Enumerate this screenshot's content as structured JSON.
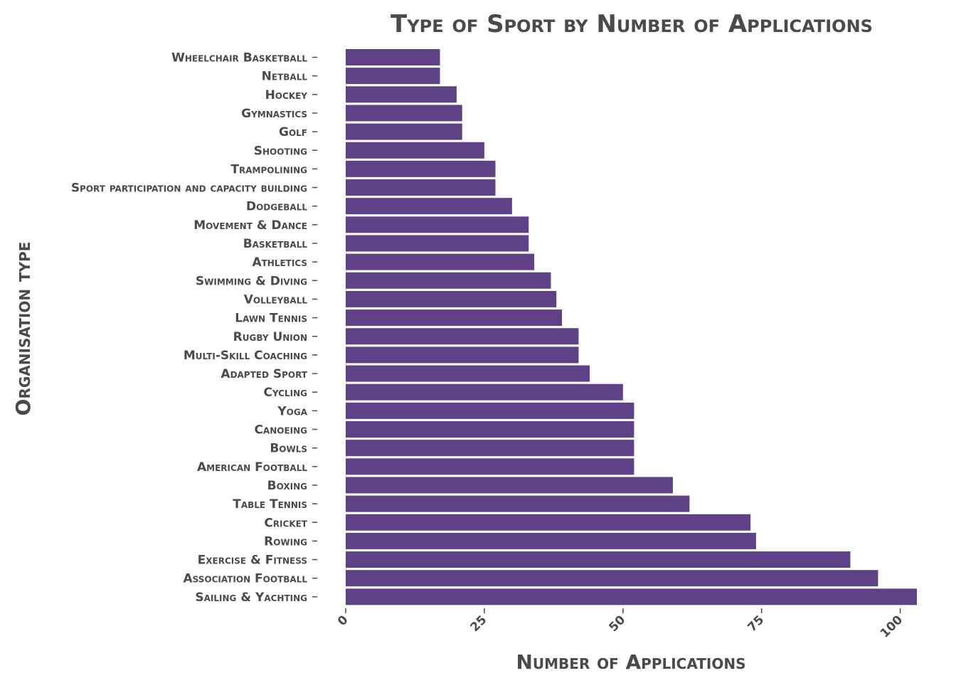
{
  "chart_data": {
    "type": "bar",
    "orientation": "horizontal",
    "title": "Type of Sport by Number of Applications",
    "xlabel": "Number of Applications",
    "ylabel": "Organisation type",
    "xlim": [
      0,
      103
    ],
    "xticks": [
      0,
      25,
      50,
      75,
      100
    ],
    "grid": false,
    "bar_color": "#5e4186",
    "categories": [
      "Wheelchair Basketball",
      "Netball",
      "Hockey",
      "Gymnastics",
      "Golf",
      "Shooting",
      "Trampolining",
      "Sport participation and capacity building",
      "Dodgeball",
      "Movement & Dance",
      "Basketball",
      "Athletics",
      "Swimming & Diving",
      "Volleyball",
      "Lawn Tennis",
      "Rugby Union",
      "Multi-Skill Coaching",
      "Adapted Sport",
      "Cycling",
      "Yoga",
      "Canoeing",
      "Bowls",
      "American Football",
      "Boxing",
      "Table Tennis",
      "Cricket",
      "Rowing",
      "Exercise & Fitness",
      "Association Football",
      "Sailing & Yachting"
    ],
    "values": [
      17,
      17,
      20,
      21,
      21,
      25,
      27,
      27,
      30,
      33,
      33,
      34,
      37,
      38,
      39,
      42,
      42,
      44,
      50,
      52,
      52,
      52,
      52,
      59,
      62,
      73,
      74,
      91,
      96,
      103
    ]
  }
}
